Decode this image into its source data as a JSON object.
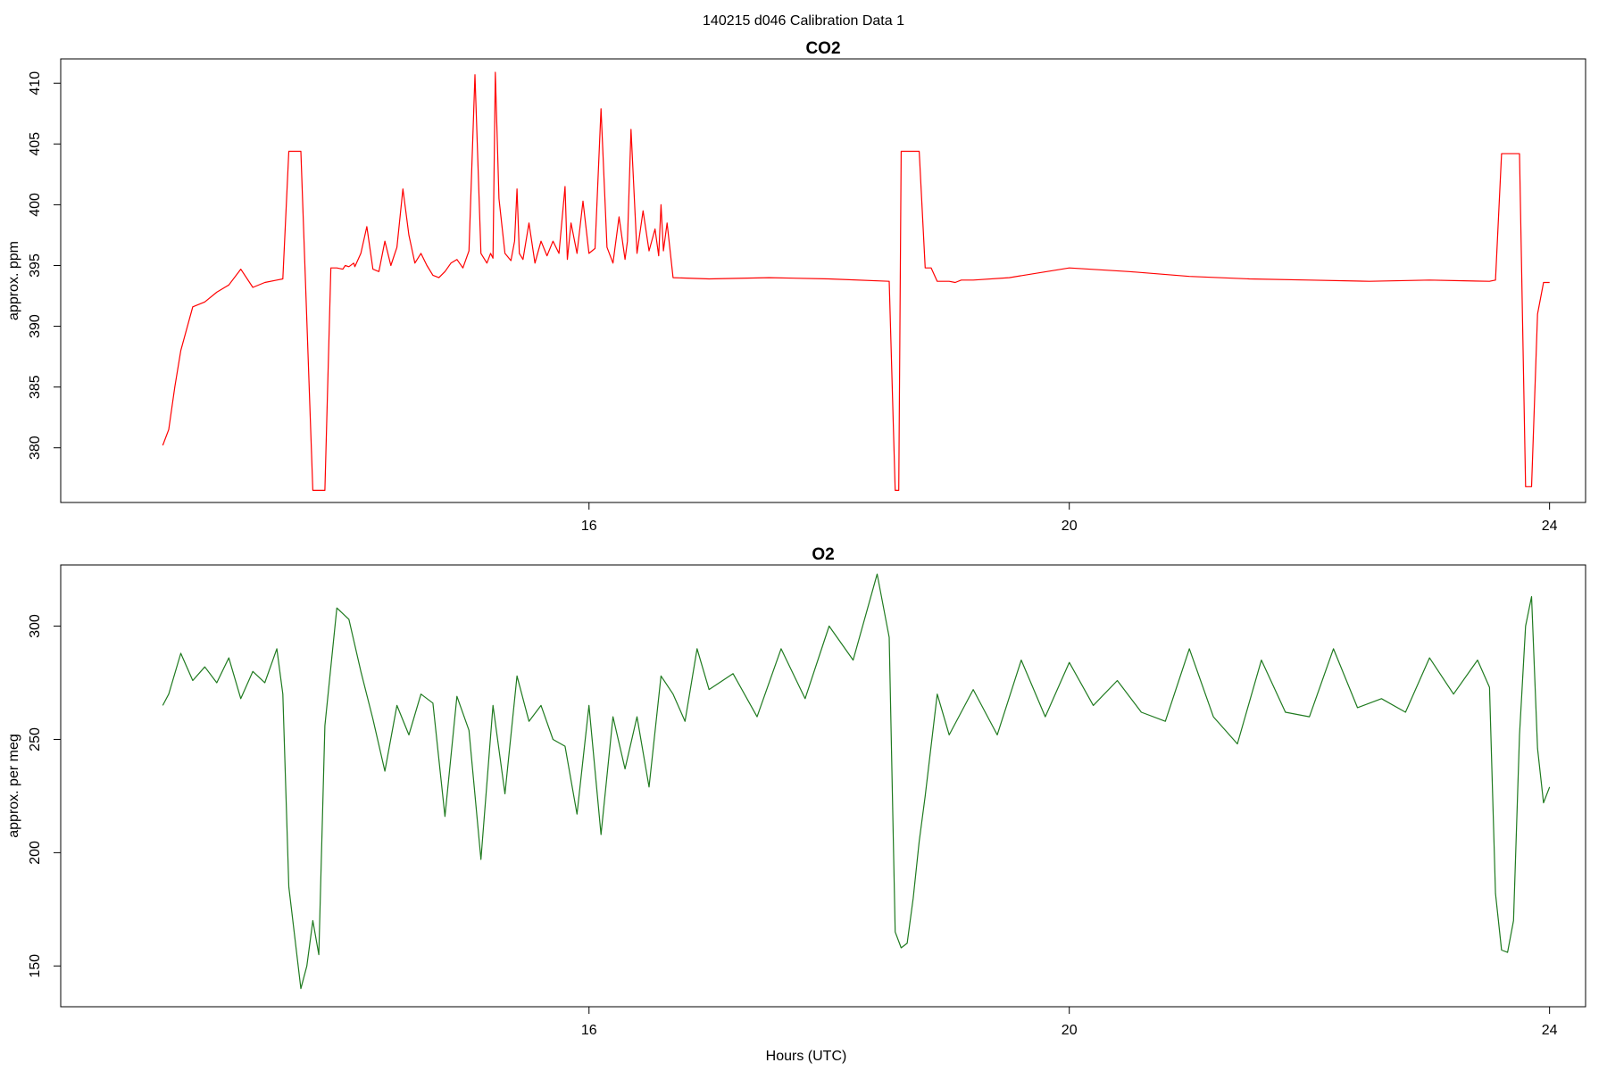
{
  "figure": {
    "title": "140215   d046   Calibration Data 1",
    "xlabel": "Hours (UTC)"
  },
  "chart_data": [
    {
      "type": "line",
      "title": "CO2",
      "xlabel": "",
      "ylabel": "approx. ppm",
      "color": "#ff0000",
      "xlim": [
        11.6,
        24.3
      ],
      "ylim": [
        375.5,
        412
      ],
      "x_ticks": [
        16,
        20,
        24
      ],
      "y_ticks": [
        380,
        385,
        390,
        395,
        400,
        405,
        410
      ],
      "grid": false,
      "legend": "none",
      "series": [
        {
          "x": [
            12.45,
            12.5,
            12.55,
            12.6,
            12.7,
            12.8,
            12.9,
            13.0,
            13.1,
            13.2,
            13.3,
            13.4,
            13.45,
            13.5,
            13.6,
            13.7,
            13.8,
            13.85,
            13.9,
            13.95,
            13.97,
            14.0,
            14.04,
            14.05,
            14.1,
            14.15,
            14.2,
            14.25,
            14.3,
            14.35,
            14.4,
            14.45,
            14.5,
            14.55,
            14.6,
            14.65,
            14.7,
            14.75,
            14.8,
            14.85,
            14.9,
            14.95,
            15.0,
            15.05,
            15.1,
            15.15,
            15.18,
            15.2,
            15.22,
            15.25,
            15.3,
            15.35,
            15.38,
            15.4,
            15.42,
            15.45,
            15.5,
            15.55,
            15.6,
            15.65,
            15.7,
            15.75,
            15.8,
            15.82,
            15.85,
            15.9,
            15.95,
            16.0,
            16.05,
            16.1,
            16.15,
            16.2,
            16.25,
            16.3,
            16.32,
            16.35,
            16.4,
            16.45,
            16.5,
            16.55,
            16.58,
            16.6,
            16.62,
            16.65,
            16.7,
            17.0,
            17.5,
            18.0,
            18.5,
            18.55,
            18.58,
            18.6,
            18.75,
            18.8,
            18.85,
            18.9,
            18.95,
            19.0,
            19.05,
            19.1,
            19.2,
            19.5,
            20.0,
            20.5,
            21.0,
            21.5,
            22.0,
            22.5,
            23.0,
            23.5,
            23.55,
            23.6,
            23.75,
            23.8,
            23.85,
            23.9,
            23.95,
            24.0
          ],
          "y": [
            380.2,
            381.5,
            385.0,
            388.0,
            391.6,
            392.0,
            392.8,
            393.4,
            394.7,
            393.2,
            393.6,
            393.8,
            393.9,
            404.4,
            404.4,
            376.5,
            376.5,
            394.8,
            394.8,
            394.7,
            395.0,
            394.9,
            395.2,
            394.9,
            396.0,
            398.2,
            394.7,
            394.5,
            397.0,
            395.0,
            396.5,
            401.3,
            397.5,
            395.2,
            396.0,
            395.0,
            394.2,
            394.0,
            394.5,
            395.2,
            395.5,
            394.8,
            396.2,
            410.7,
            396.0,
            395.2,
            396.0,
            395.6,
            410.9,
            400.5,
            396.0,
            395.4,
            397.0,
            401.3,
            396.0,
            395.5,
            398.5,
            395.2,
            397.0,
            395.8,
            397.0,
            396.0,
            401.5,
            395.5,
            398.5,
            396.0,
            400.3,
            396.0,
            396.4,
            407.9,
            396.5,
            395.2,
            399.0,
            395.5,
            397.0,
            406.2,
            396.0,
            399.5,
            396.2,
            398.0,
            395.8,
            400.0,
            396.2,
            398.5,
            394.0,
            393.9,
            394.0,
            393.9,
            393.7,
            376.5,
            376.5,
            404.4,
            404.4,
            394.8,
            394.8,
            393.7,
            393.7,
            393.7,
            393.6,
            393.8,
            393.8,
            394.0,
            394.8,
            394.5,
            394.1,
            393.9,
            393.8,
            393.7,
            393.8,
            393.7,
            393.8,
            404.2,
            404.2,
            376.8,
            376.8,
            391.0,
            393.6,
            393.6
          ]
        }
      ]
    },
    {
      "type": "line",
      "title": "O2",
      "xlabel": "Hours (UTC)",
      "ylabel": "approx. per meg",
      "color": "#1f7a1f",
      "xlim": [
        11.6,
        24.3
      ],
      "ylim": [
        132,
        327
      ],
      "x_ticks": [
        16,
        20,
        24
      ],
      "y_ticks": [
        150,
        200,
        250,
        300
      ],
      "grid": false,
      "legend": "none",
      "series": [
        {
          "x": [
            12.45,
            12.5,
            12.6,
            12.7,
            12.8,
            12.9,
            13.0,
            13.1,
            13.2,
            13.3,
            13.4,
            13.45,
            13.5,
            13.6,
            13.65,
            13.7,
            13.75,
            13.8,
            13.9,
            14.0,
            14.1,
            14.2,
            14.3,
            14.4,
            14.5,
            14.6,
            14.7,
            14.8,
            14.9,
            15.0,
            15.1,
            15.2,
            15.3,
            15.4,
            15.5,
            15.6,
            15.7,
            15.8,
            15.9,
            16.0,
            16.1,
            16.2,
            16.3,
            16.4,
            16.5,
            16.6,
            16.7,
            16.8,
            16.9,
            17.0,
            17.2,
            17.4,
            17.6,
            17.8,
            18.0,
            18.2,
            18.4,
            18.5,
            18.55,
            18.6,
            18.65,
            18.7,
            18.75,
            18.8,
            18.9,
            19.0,
            19.2,
            19.4,
            19.6,
            19.8,
            20.0,
            20.2,
            20.4,
            20.6,
            20.8,
            21.0,
            21.2,
            21.4,
            21.6,
            21.8,
            22.0,
            22.2,
            22.4,
            22.6,
            22.8,
            23.0,
            23.2,
            23.4,
            23.5,
            23.55,
            23.6,
            23.65,
            23.7,
            23.75,
            23.8,
            23.85,
            23.9,
            23.95,
            24.0
          ],
          "y": [
            265,
            270,
            288,
            276,
            282,
            275,
            286,
            268,
            280,
            275,
            290,
            270,
            185,
            140,
            150,
            170,
            155,
            256,
            308,
            303,
            280,
            259,
            236,
            265,
            252,
            270,
            266,
            216,
            269,
            254,
            197,
            265,
            226,
            278,
            258,
            265,
            250,
            247,
            217,
            265,
            208,
            260,
            237,
            260,
            229,
            278,
            270,
            258,
            290,
            272,
            279,
            260,
            290,
            268,
            300,
            285,
            323,
            295,
            165,
            158,
            160,
            180,
            205,
            225,
            270,
            252,
            272,
            252,
            285,
            260,
            284,
            265,
            276,
            262,
            258,
            290,
            260,
            248,
            285,
            262,
            260,
            290,
            264,
            268,
            262,
            286,
            270,
            285,
            273,
            182,
            157,
            156,
            170,
            252,
            300,
            313,
            246,
            222,
            229
          ]
        }
      ]
    }
  ]
}
